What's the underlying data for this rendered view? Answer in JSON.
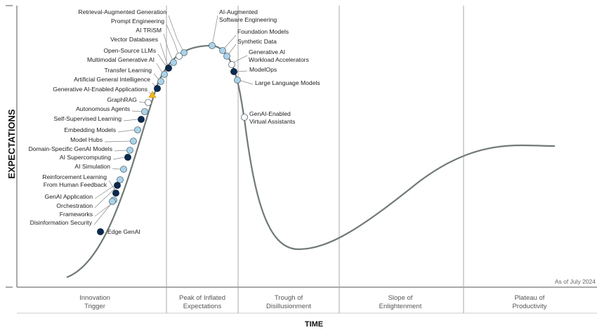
{
  "axes": {
    "y_title": "EXPECTATIONS",
    "x_title": "TIME"
  },
  "as_of": "As of July 2024",
  "phases": [
    {
      "id": "innovation-trigger",
      "line1": "Innovation",
      "line2": "Trigger"
    },
    {
      "id": "peak-of-inflated-expectations",
      "line1": "Peak of Inflated",
      "line2": "Expectations"
    },
    {
      "id": "trough-of-disillusionment",
      "line1": "Trough of",
      "line2": "Disillusionment"
    },
    {
      "id": "slope-of-enlightenment",
      "line1": "Slope of",
      "line2": "Enlightenment"
    },
    {
      "id": "plateau-of-productivity",
      "line1": "Plateau of",
      "line2": "Productivity"
    }
  ],
  "technologies": [
    {
      "lines": [
        "Retrieval-Augmented Generation"
      ],
      "marker": "light"
    },
    {
      "lines": [
        "Prompt Engineering"
      ],
      "marker": "white"
    },
    {
      "lines": [
        "AI TRiSM"
      ],
      "marker": "light"
    },
    {
      "lines": [
        "Vector Databases"
      ],
      "marker": "light"
    },
    {
      "lines": [
        "Open-Source LLMs"
      ],
      "marker": "dark"
    },
    {
      "lines": [
        "Multimodal Generative AI"
      ],
      "marker": "light"
    },
    {
      "lines": [
        "Transfer Learning"
      ],
      "marker": "light"
    },
    {
      "lines": [
        "Artificial General Intelligence"
      ],
      "marker": "dark"
    },
    {
      "lines": [
        "Generative AI-Enabled Applications"
      ],
      "marker": "triangle"
    },
    {
      "lines": [
        "GraphRAG"
      ],
      "marker": "white"
    },
    {
      "lines": [
        "Autonomous Agents"
      ],
      "marker": "light"
    },
    {
      "lines": [
        "Self-Supervised Learning"
      ],
      "marker": "dark"
    },
    {
      "lines": [
        "Embedding Models"
      ],
      "marker": "light"
    },
    {
      "lines": [
        "Model Hubs"
      ],
      "marker": "light"
    },
    {
      "lines": [
        "Domain-Specific GenAI Models"
      ],
      "marker": "light"
    },
    {
      "lines": [
        "AI Supercomputing"
      ],
      "marker": "dark"
    },
    {
      "lines": [
        "AI Simulation"
      ],
      "marker": "light"
    },
    {
      "lines": [
        "Reinforcement Learning",
        "From Human Feedback"
      ],
      "marker": "dark"
    },
    {
      "lines": [
        "GenAI Application"
      ],
      "marker": "light"
    },
    {
      "lines": [
        "Orchestration"
      ],
      "marker": "dark"
    },
    {
      "lines": [
        "Frameworks"
      ],
      "marker": "light"
    },
    {
      "lines": [
        "Disinformation Security"
      ],
      "marker": "light"
    },
    {
      "lines": [
        "Edge GenAI"
      ],
      "marker": "dark"
    },
    {
      "lines": [
        "AI-Augmented",
        "Software Engineering"
      ],
      "marker": "light"
    },
    {
      "lines": [
        "Foundation Models"
      ],
      "marker": "light"
    },
    {
      "lines": [
        "Synthetic Data"
      ],
      "marker": "light"
    },
    {
      "lines": [
        "Generative AI",
        "Workload Accelerators"
      ],
      "marker": "white"
    },
    {
      "lines": [
        "ModelOps"
      ],
      "marker": "dark"
    },
    {
      "lines": [
        "Large Language Models"
      ],
      "marker": "light"
    },
    {
      "lines": [
        "GenAI-Enabled",
        "Virtual Assistants"
      ],
      "marker": "white"
    }
  ],
  "colors": {
    "curve": "#707a78",
    "dark": "#0b2a4f",
    "light": "#a9d3ea",
    "white": "#ffffff",
    "triangle": "#f2b51c",
    "divider": "#a0a0a0"
  }
}
